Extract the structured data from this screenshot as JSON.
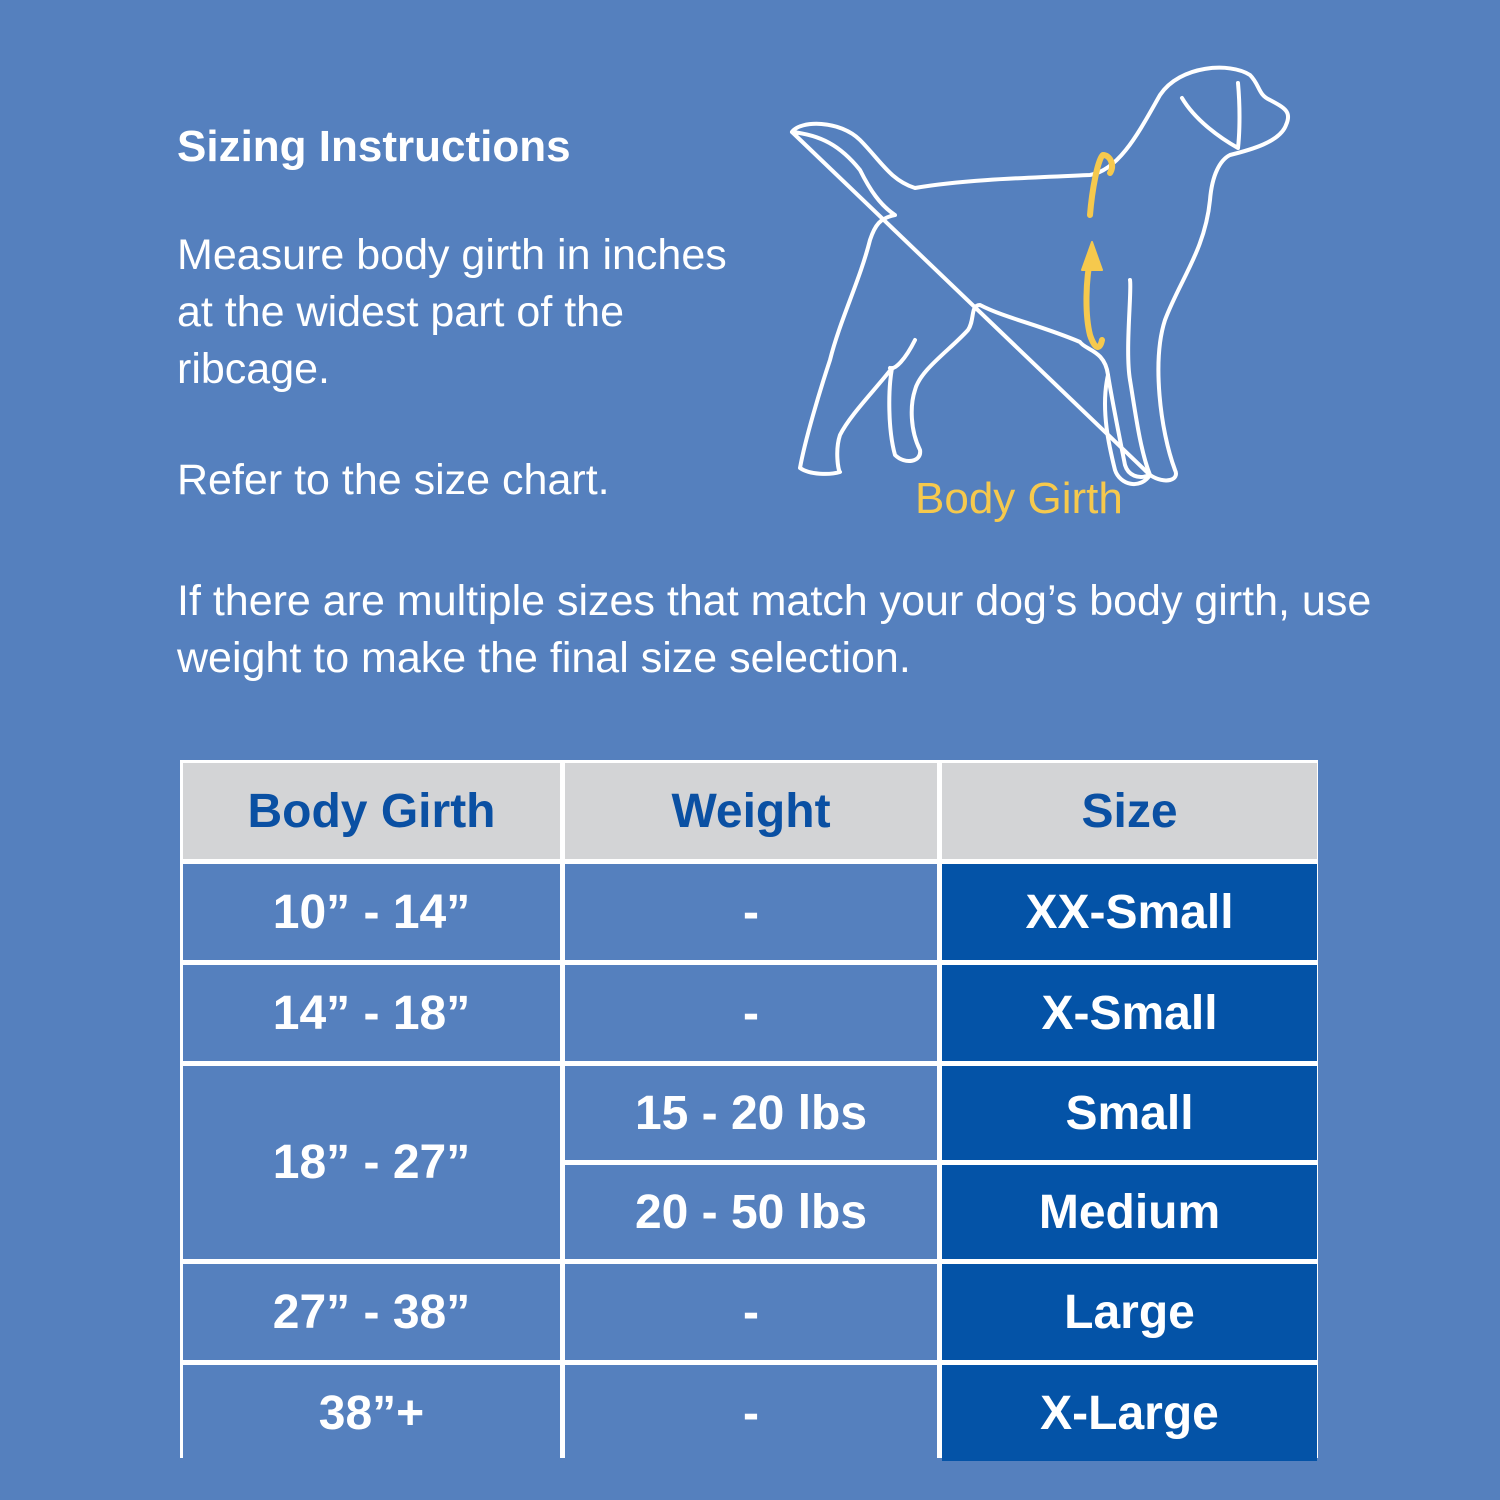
{
  "title": "Sizing Instructions",
  "instructions": {
    "measure": "Measure body girth in inches at the widest part of the ribcage.",
    "refer": "Refer to the size chart.",
    "multiple": "If there are multiple sizes that match your dog’s body girth, use weight to make the final size selection."
  },
  "illustration": {
    "label": "Body Girth",
    "icon": "dog-outline-icon",
    "accent": "#f6c94d"
  },
  "colors": {
    "background": "#5580be",
    "header": "#d3d4d6",
    "header_text": "#0a50a3",
    "size_cell": "#0453a7"
  },
  "table": {
    "headers": [
      "Body Girth",
      "Weight",
      "Size"
    ],
    "rows": [
      {
        "girth": "10” - 14”",
        "weight": "-",
        "size": "XX-Small"
      },
      {
        "girth": "14” - 18”",
        "weight": "-",
        "size": "X-Small"
      },
      {
        "girth": "18” - 27”",
        "weight": "15 - 20 lbs",
        "size": "Small"
      },
      {
        "girth": "18” - 27”",
        "weight": "20 - 50 lbs",
        "size": "Medium"
      },
      {
        "girth": "27” - 38”",
        "weight": "-",
        "size": "Large"
      },
      {
        "girth": "38”+",
        "weight": "-",
        "size": "X-Large"
      }
    ]
  }
}
